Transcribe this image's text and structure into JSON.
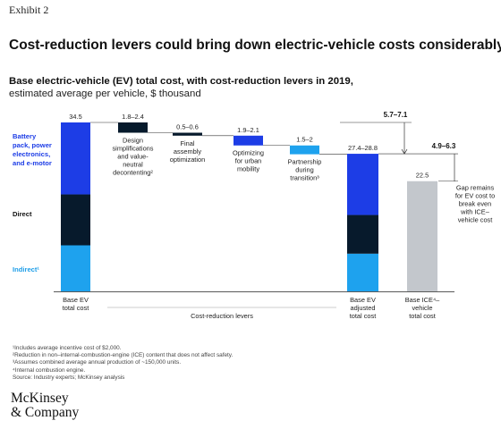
{
  "exhibit_label": "Exhibit 2",
  "headline": "Cost-reduction levers could bring down electric-vehicle costs considerably.",
  "subtitle_bold": "Base electric-vehicle (EV) total cost, with cost-reduction levers in 2019,",
  "subtitle_regular": "estimated average per vehicle, $ thousand",
  "colors": {
    "battery": "#1d3de6",
    "direct": "#071a2c",
    "indirect": "#1ea2ee",
    "ice": "#c3c7cc",
    "axis": "#222222",
    "battery_label": "#1d3de6",
    "indirect_label": "#1e9ee8"
  },
  "chart_data": {
    "type": "bar",
    "variant": "waterfall",
    "unit": "$ thousand",
    "legend": [
      {
        "key": "battery",
        "lines": [
          "Battery",
          "pack, power",
          "electronics,",
          "and e-motor"
        ]
      },
      {
        "key": "direct",
        "lines": [
          "Direct"
        ]
      },
      {
        "key": "indirect",
        "lines": [
          "Indirect¹"
        ]
      }
    ],
    "ylim": [
      0,
      34.5
    ],
    "bars": [
      {
        "id": "base-ev",
        "kind": "stack",
        "value_label": "34.5",
        "segments": [
          {
            "key": "indirect",
            "value": 9.4
          },
          {
            "key": "direct",
            "value": 10.4
          },
          {
            "key": "battery",
            "value": 14.7
          }
        ],
        "label_lines": [
          "Base EV",
          "total cost"
        ]
      },
      {
        "id": "lever-1",
        "kind": "lever",
        "top": 34.5,
        "value": 2.1,
        "color_key": "direct",
        "value_label": "1.8–2.4",
        "label_lines": [
          "Design",
          "simplifications",
          "and value-",
          "neutral",
          "decontenting²"
        ]
      },
      {
        "id": "lever-2",
        "kind": "lever",
        "top": 32.4,
        "value": 0.6,
        "color_key": "direct",
        "value_label": "0.5–0.6",
        "label_lines": [
          "Final",
          "assembly",
          "optimization"
        ]
      },
      {
        "id": "lever-3",
        "kind": "lever",
        "top": 31.8,
        "value": 2.0,
        "color_key": "battery",
        "value_label": "1.9–2.1",
        "label_lines": [
          "Optimizing",
          "for urban",
          "mobility"
        ]
      },
      {
        "id": "lever-4",
        "kind": "lever",
        "top": 29.8,
        "value": 1.8,
        "color_key": "indirect",
        "value_label": "1.5–2",
        "label_lines": [
          "Partnership",
          "during",
          "transition³"
        ]
      },
      {
        "id": "adjusted-ev",
        "kind": "stack",
        "value_label": "27.4–28.8",
        "segments": [
          {
            "key": "indirect",
            "value": 7.7
          },
          {
            "key": "direct",
            "value": 7.9
          },
          {
            "key": "battery",
            "value": 12.5
          }
        ],
        "label_lines": [
          "Base EV",
          "adjusted",
          "total cost"
        ]
      },
      {
        "id": "ice",
        "kind": "stack",
        "value_label": "22.5",
        "segments": [
          {
            "key": "ice",
            "value": 22.5
          }
        ],
        "label_lines": [
          "Base ICE⁴–",
          "vehicle",
          "total cost"
        ]
      }
    ],
    "range_brackets": [
      {
        "from": 34.5,
        "to": 28.1,
        "label": "5.7–7.1"
      },
      {
        "from": 28.1,
        "to": 22.5,
        "label": "4.9–6.3"
      }
    ],
    "gap_note": [
      "Gap remains",
      "for EV cost to",
      "break even",
      "with ICE–",
      "vehicle cost"
    ],
    "group_label": "Cost-reduction levers"
  },
  "footnotes": [
    "¹Includes average incentive cost of $2,000.",
    "²Reduction in non–internal-combustion-engine (ICE) content that does not affect safety.",
    "³Assumes combined average annual production of ~150,000 units.",
    "⁴Internal combustion engine.",
    "Source: Industry experts; McKinsey analysis"
  ],
  "logo_lines": [
    "McKinsey",
    "& Company"
  ]
}
